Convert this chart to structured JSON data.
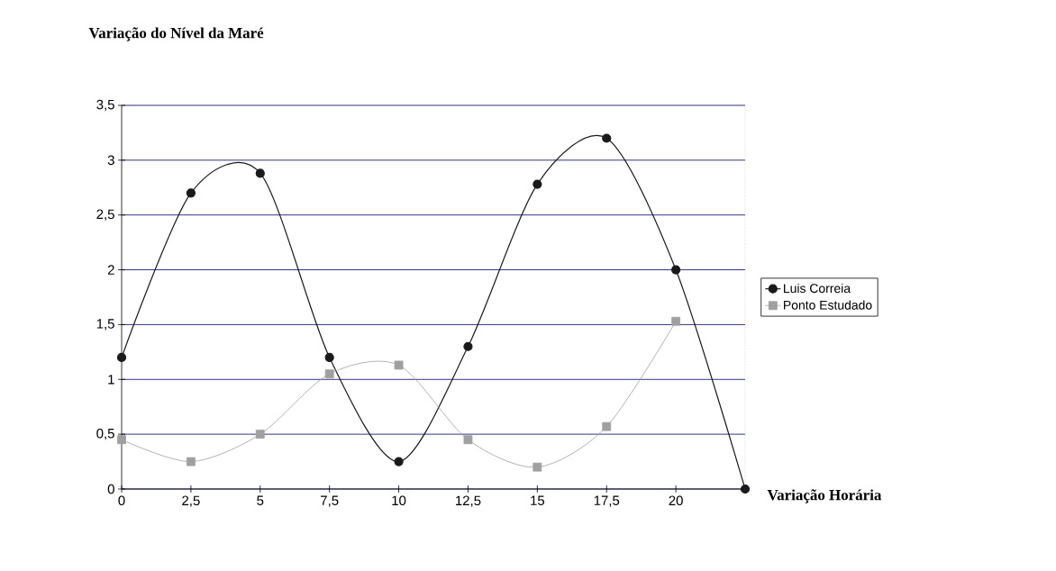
{
  "chart_data": {
    "type": "line",
    "title": "Variação do Nível da Maré",
    "xlabel": "Variação Horária",
    "xlim": [
      0,
      22.5
    ],
    "ylim": [
      0,
      3.5
    ],
    "xticks": [
      {
        "value": 0,
        "label": "0"
      },
      {
        "value": 2.5,
        "label": "2,5"
      },
      {
        "value": 5,
        "label": "5"
      },
      {
        "value": 7.5,
        "label": "7,5"
      },
      {
        "value": 10,
        "label": "10"
      },
      {
        "value": 12.5,
        "label": "12,5"
      },
      {
        "value": 15,
        "label": "15"
      },
      {
        "value": 17.5,
        "label": "17,5"
      },
      {
        "value": 20,
        "label": "20"
      }
    ],
    "yticks": [
      {
        "value": 0,
        "label": "0"
      },
      {
        "value": 0.5,
        "label": "0,5"
      },
      {
        "value": 1,
        "label": "1"
      },
      {
        "value": 1.5,
        "label": "1,5"
      },
      {
        "value": 2,
        "label": "2"
      },
      {
        "value": 2.5,
        "label": "2,5"
      },
      {
        "value": 3,
        "label": "3"
      },
      {
        "value": 3.5,
        "label": "3,5"
      }
    ],
    "grid": "y",
    "legend": "right",
    "series": [
      {
        "name": "Luis Correia",
        "color": "#1a1a1a",
        "marker": "circle",
        "x": [
          0,
          2.5,
          5,
          7.5,
          10,
          12.5,
          15,
          17.5,
          20,
          22.5
        ],
        "values": [
          1.2,
          2.7,
          2.88,
          1.2,
          0.25,
          1.3,
          2.78,
          3.2,
          2.0,
          0
        ]
      },
      {
        "name": "Ponto Estudado",
        "color": "#a0a0a0",
        "marker": "square",
        "x": [
          0,
          2.5,
          5,
          7.5,
          10,
          12.5,
          15,
          17.5,
          20
        ],
        "values": [
          0.45,
          0.25,
          0.5,
          1.05,
          1.13,
          0.45,
          0.2,
          0.57,
          1.53
        ]
      }
    ]
  }
}
